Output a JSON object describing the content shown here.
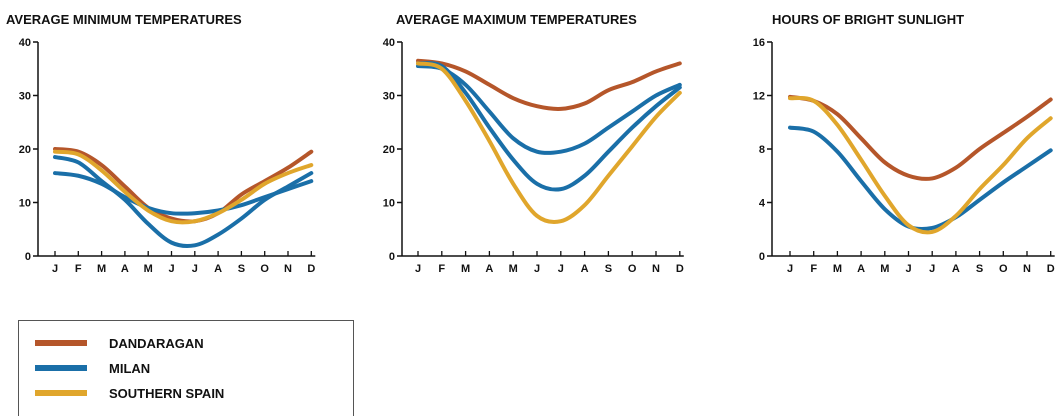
{
  "colors": {
    "dandaragan": "#b5562a",
    "milan": "#1a6fa8",
    "southern_spain": "#e0a62c",
    "axis": "#111111"
  },
  "legend": {
    "items": [
      {
        "key": "dandaragan",
        "label": "DANDARAGAN"
      },
      {
        "key": "milan",
        "label": "MILAN"
      },
      {
        "key": "southern_spain",
        "label": "SOUTHERN SPAIN"
      }
    ]
  },
  "chart_data": [
    {
      "type": "line",
      "title": "AVERAGE MINIMUM TEMPERATURES",
      "categories": [
        "J",
        "F",
        "M",
        "A",
        "M",
        "J",
        "J",
        "A",
        "S",
        "O",
        "N",
        "D"
      ],
      "ylim": [
        0,
        40
      ],
      "yticks": [
        "0",
        "10",
        "20",
        "30",
        "40"
      ],
      "series": [
        {
          "name": "DANDARAGAN",
          "key": "dandaragan",
          "values": [
            20,
            19.5,
            17,
            13,
            9,
            7,
            6.5,
            8,
            11.5,
            14,
            16.5,
            19.5
          ]
        },
        {
          "name": "MILAN",
          "key": "milan",
          "values": [
            18.5,
            17.5,
            14,
            10.5,
            6,
            2.5,
            2,
            4,
            7,
            10.5,
            13,
            15.5
          ]
        },
        {
          "name": "MILAN",
          "key": "milan",
          "values": [
            15.5,
            15,
            13.5,
            11,
            9,
            8,
            8,
            8.5,
            9.5,
            11,
            12.5,
            14
          ]
        },
        {
          "name": "SOUTHERN SPAIN",
          "key": "southern_spain",
          "values": [
            19.5,
            19,
            16,
            12,
            8.5,
            6.5,
            6.5,
            8,
            10.5,
            13.5,
            15.5,
            17
          ]
        }
      ]
    },
    {
      "type": "line",
      "title": "AVERAGE MAXIMUM TEMPERATURES",
      "categories": [
        "J",
        "F",
        "M",
        "A",
        "M",
        "J",
        "J",
        "A",
        "S",
        "O",
        "N",
        "D"
      ],
      "ylim": [
        0,
        40
      ],
      "yticks": [
        "0",
        "10",
        "20",
        "30",
        "40"
      ],
      "series": [
        {
          "name": "DANDARAGAN",
          "key": "dandaragan",
          "values": [
            36.5,
            36,
            34.5,
            32,
            29.5,
            28,
            27.5,
            28.5,
            31,
            32.5,
            34.5,
            36
          ]
        },
        {
          "name": "MILAN",
          "key": "milan",
          "values": [
            35.5,
            35,
            32,
            27,
            22,
            19.5,
            19.5,
            21,
            24,
            27,
            30,
            32
          ]
        },
        {
          "name": "MILAN",
          "key": "milan",
          "values": [
            36,
            35.5,
            30.5,
            24,
            18,
            13.5,
            12.5,
            15,
            19.5,
            24,
            28,
            31.5
          ]
        },
        {
          "name": "SOUTHERN SPAIN",
          "key": "southern_spain",
          "values": [
            36,
            35,
            29,
            21.5,
            13.5,
            7.5,
            6.5,
            9.5,
            15,
            20.5,
            26,
            30.5
          ]
        }
      ]
    },
    {
      "type": "line",
      "title": "HOURS OF BRIGHT SUNLIGHT",
      "categories": [
        "J",
        "F",
        "M",
        "A",
        "M",
        "J",
        "J",
        "A",
        "S",
        "O",
        "N",
        "D"
      ],
      "ylim": [
        0,
        16
      ],
      "yticks": [
        "0",
        "4",
        "8",
        "12",
        "16"
      ],
      "series": [
        {
          "name": "DANDARAGAN",
          "key": "dandaragan",
          "values": [
            11.9,
            11.6,
            10.6,
            8.8,
            7,
            6,
            5.8,
            6.6,
            8,
            9.2,
            10.4,
            11.7
          ]
        },
        {
          "name": "MILAN",
          "key": "milan",
          "values": [
            9.6,
            9.3,
            7.8,
            5.6,
            3.5,
            2.2,
            2.1,
            2.9,
            4.2,
            5.5,
            6.7,
            7.9
          ]
        },
        {
          "name": "SOUTHERN SPAIN",
          "key": "southern_spain",
          "values": [
            11.8,
            11.6,
            9.8,
            7.2,
            4.5,
            2.3,
            1.8,
            3,
            5,
            6.8,
            8.8,
            10.3
          ]
        }
      ]
    }
  ]
}
